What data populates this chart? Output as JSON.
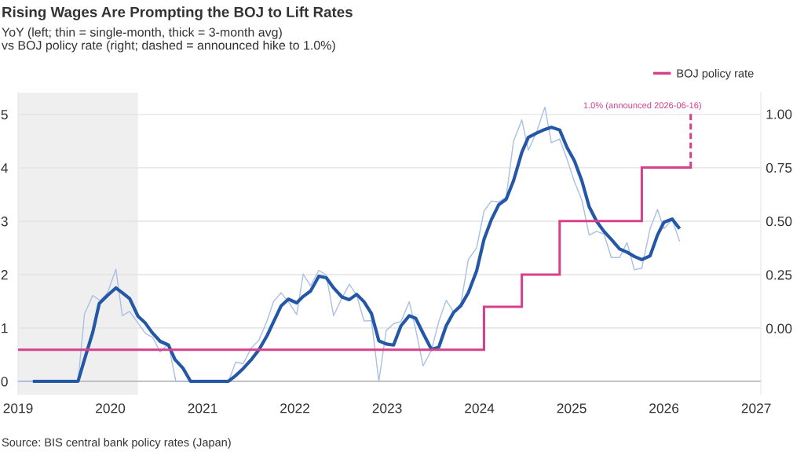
{
  "chart_data": {
    "type": "line",
    "title": "Rising Wages Are Prompting the BOJ to Lift Rates",
    "subtitle": "YoY (left; thin = single-month, thick = 3-month avg)\nvs BOJ policy rate (right; dashed = announced hike to 1.0%)",
    "annotations": [
      {
        "text": "1.0% (announced 2026-06-16)",
        "x": 2026.29,
        "y": 5.0
      },
      "Source: BIS central bank policy rates (Japan)"
    ],
    "xlim": [
      2019,
      2027.05
    ],
    "xticks": [
      2019,
      2020,
      2021,
      2022,
      2023,
      2024,
      2025,
      2026,
      2027
    ],
    "ylim": [
      -0.25,
      5.41
    ],
    "yticks": [
      0,
      1,
      2,
      3,
      4,
      5
    ],
    "y2lim": [
      -0.31,
      1.1
    ],
    "y2ticks": [
      {
        "value": 0,
        "label": "0.00"
      },
      {
        "value": 0.25,
        "label": "0.25"
      },
      {
        "value": 0.5,
        "label": "0.50"
      },
      {
        "value": 0.75,
        "label": "0.75"
      },
      {
        "value": 1,
        "label": "1.00"
      }
    ],
    "grid": "y",
    "legend": "top right",
    "bands": [
      {
        "axis": "x",
        "from": 2019,
        "to": 2020.3,
        "color": "#efefef"
      }
    ],
    "series": [
      {
        "color": "#a9bfe3",
        "x": [
          2019.0,
          2019.65,
          2019.72,
          2019.81,
          2019.89,
          2019.97,
          2020.06,
          2020.13,
          2020.21,
          2020.3,
          2020.38,
          2020.46,
          2020.54,
          2020.63,
          2020.71,
          2021.28,
          2021.36,
          2021.44,
          2021.53,
          2021.61,
          2021.7,
          2021.77,
          2021.85,
          2021.93,
          2022.02,
          2022.09,
          2022.17,
          2022.26,
          2022.34,
          2022.42,
          2022.51,
          2022.59,
          2022.67,
          2022.75,
          2022.83,
          2022.91,
          2022.99,
          2023.07,
          2023.15,
          2023.24,
          2023.31,
          2023.39,
          2023.48,
          2023.56,
          2023.64,
          2023.72,
          2023.8,
          2023.88,
          2023.97,
          2024.05,
          2024.13,
          2024.21,
          2024.29,
          2024.37,
          2024.46,
          2024.53,
          2024.62,
          2024.71,
          2024.78,
          2024.87,
          2024.95,
          2025.03,
          2025.11,
          2025.19,
          2025.27,
          2025.35,
          2025.43,
          2025.52,
          2025.6,
          2025.68,
          2025.76,
          2025.85,
          2025.93,
          2026.0,
          2026.09,
          2026.17
        ],
        "values": [
          0,
          0,
          1.26,
          1.61,
          1.51,
          1.66,
          2.1,
          1.23,
          1.31,
          1.09,
          0.9,
          0.82,
          0.55,
          0.7,
          0,
          0,
          0.36,
          0.33,
          0.63,
          0.77,
          1.14,
          1.5,
          1.66,
          1.49,
          1.25,
          2.01,
          1.79,
          2.08,
          1.99,
          1.23,
          1.56,
          1.82,
          1.61,
          1.13,
          1.14,
          0,
          0.95,
          1.08,
          1.12,
          1.49,
          0.97,
          0.29,
          0.58,
          1.12,
          1.52,
          1.3,
          1.46,
          2.28,
          2.5,
          3.19,
          3.38,
          3.36,
          3.45,
          4.5,
          4.9,
          4.33,
          4.67,
          5.14,
          4.47,
          4.54,
          4.16,
          3.74,
          3.4,
          2.74,
          2.81,
          2.76,
          2.32,
          2.32,
          2.6,
          2.09,
          2.12,
          2.86,
          3.22,
          2.86,
          3.03,
          2.62
        ]
      },
      {
        "color": "#2557a7",
        "x": [
          2019.16,
          2019.65,
          2019.72,
          2019.81,
          2019.88,
          2019.97,
          2020.06,
          2020.13,
          2020.21,
          2020.3,
          2020.38,
          2020.45,
          2020.54,
          2020.63,
          2020.7,
          2020.79,
          2020.87,
          2021.28,
          2021.36,
          2021.44,
          2021.53,
          2021.61,
          2021.7,
          2021.77,
          2021.85,
          2021.93,
          2022.02,
          2022.09,
          2022.17,
          2022.26,
          2022.34,
          2022.42,
          2022.51,
          2022.59,
          2022.67,
          2022.75,
          2022.83,
          2022.91,
          2022.99,
          2023.07,
          2023.15,
          2023.24,
          2023.31,
          2023.39,
          2023.48,
          2023.56,
          2023.64,
          2023.72,
          2023.8,
          2023.88,
          2023.97,
          2024.05,
          2024.13,
          2024.21,
          2024.29,
          2024.37,
          2024.46,
          2024.53,
          2024.62,
          2024.71,
          2024.78,
          2024.87,
          2024.95,
          2025.03,
          2025.11,
          2025.19,
          2025.27,
          2025.35,
          2025.43,
          2025.52,
          2025.6,
          2025.68,
          2025.76,
          2025.85,
          2025.93,
          2026.0,
          2026.09,
          2026.17
        ],
        "values": [
          0,
          0,
          0.41,
          0.92,
          1.46,
          1.61,
          1.75,
          1.66,
          1.55,
          1.22,
          1.09,
          0.92,
          0.75,
          0.68,
          0.41,
          0.24,
          0,
          0,
          0.11,
          0.24,
          0.41,
          0.59,
          0.86,
          1.12,
          1.41,
          1.54,
          1.47,
          1.59,
          1.69,
          1.97,
          1.94,
          1.75,
          1.58,
          1.53,
          1.63,
          1.49,
          1.27,
          0.76,
          0.7,
          0.68,
          1.04,
          1.23,
          1.18,
          0.9,
          0.6,
          0.64,
          1.04,
          1.29,
          1.42,
          1.66,
          2.07,
          2.66,
          3.03,
          3.31,
          3.41,
          3.76,
          4.29,
          4.57,
          4.65,
          4.72,
          4.76,
          4.71,
          4.38,
          4.13,
          3.76,
          3.27,
          3.0,
          2.81,
          2.66,
          2.48,
          2.42,
          2.34,
          2.28,
          2.35,
          2.74,
          2.98,
          3.04,
          2.86
        ]
      },
      {
        "name": "BOJ policy rate",
        "type": "step",
        "axis": "y2",
        "color": "#d6418c",
        "x": [
          2019,
          2024.05,
          2024.46,
          2024.87,
          2025.76,
          2026.29
        ],
        "values": [
          -0.1,
          0.1,
          0.25,
          0.5,
          0.75,
          0.75
        ]
      },
      {
        "type": "line",
        "axis": "y2",
        "line_style": "dashed",
        "color": "#d6418c",
        "x": [
          2026.29,
          2026.29
        ],
        "values": [
          0.75,
          1.0
        ]
      }
    ]
  }
}
